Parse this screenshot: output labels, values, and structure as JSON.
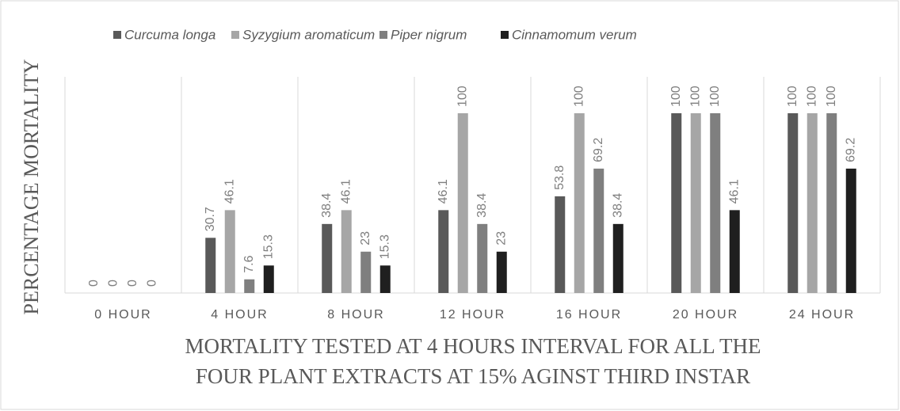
{
  "chart_data": {
    "type": "bar",
    "ylabel": "PERCENTAGE MORTALITY",
    "xlabel": [
      "MORTALITY TESTED AT 4 HOURS INTERVAL FOR ALL THE",
      "FOUR PLANT EXTRACTS AT 15% AGINST THIRD INSTAR"
    ],
    "categories": [
      "0 HOUR",
      "4 HOUR",
      "8 HOUR",
      "12 HOUR",
      "16 HOUR",
      "20 HOUR",
      "24 HOUR"
    ],
    "ylim": [
      0,
      100
    ],
    "legend": "top",
    "series": [
      {
        "name": "Curcuma longa",
        "color": "#595959",
        "values": [
          0,
          30.7,
          38.4,
          46.1,
          53.8,
          100,
          100
        ]
      },
      {
        "name": "Syzygium aromaticum",
        "color": "#a6a6a6",
        "values": [
          0,
          46.1,
          46.1,
          100,
          100,
          100,
          100
        ]
      },
      {
        "name": "Piper nigrum",
        "color": "#7f7f7f",
        "values": [
          0,
          7.6,
          23,
          38.4,
          69.2,
          100,
          100
        ]
      },
      {
        "name": "Cinnamomum verum",
        "color": "#1f1f1f",
        "values": [
          0,
          15.3,
          15.3,
          23,
          38.4,
          46.1,
          69.2
        ]
      }
    ]
  }
}
